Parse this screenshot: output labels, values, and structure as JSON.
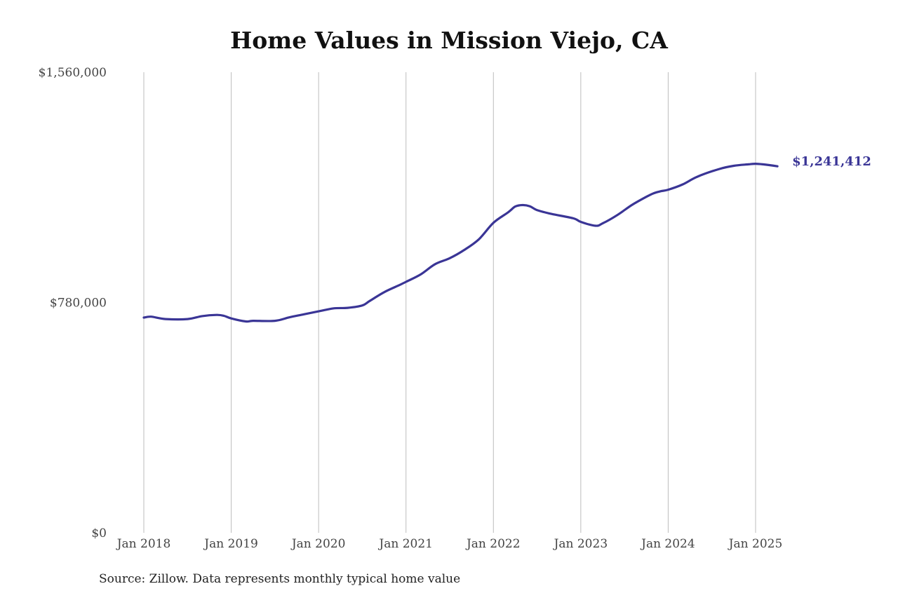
{
  "chart_data": {
    "type": "line",
    "title": "Home Values in Mission Viejo, CA",
    "xlabel": "",
    "ylabel": "",
    "ylim": [
      0,
      1560000
    ],
    "y_ticks": [
      {
        "value": 0,
        "label": "$0"
      },
      {
        "value": 780000,
        "label": "$780,000"
      },
      {
        "value": 1560000,
        "label": "$1,560,000"
      }
    ],
    "x_ticks": [
      {
        "value": 2018.0,
        "label": "Jan 2018"
      },
      {
        "value": 2019.0,
        "label": "Jan 2019"
      },
      {
        "value": 2020.0,
        "label": "Jan 2020"
      },
      {
        "value": 2021.0,
        "label": "Jan 2021"
      },
      {
        "value": 2022.0,
        "label": "Jan 2022"
      },
      {
        "value": 2023.0,
        "label": "Jan 2023"
      },
      {
        "value": 2024.0,
        "label": "Jan 2024"
      },
      {
        "value": 2025.0,
        "label": "Jan 2025"
      }
    ],
    "grid": "vertical",
    "line_color": "#3a3596",
    "series": [
      {
        "x": [
          2018.0,
          2018.083,
          2018.25,
          2018.5,
          2018.667,
          2018.833,
          2018.917,
          2019.0,
          2019.167,
          2019.25,
          2019.5,
          2019.667,
          2019.833,
          2020.0,
          2020.167,
          2020.333,
          2020.5,
          2020.583,
          2020.75,
          2020.917,
          2021.0,
          2021.167,
          2021.333,
          2021.5,
          2021.667,
          2021.833,
          2022.0,
          2022.167,
          2022.25,
          2022.333,
          2022.417,
          2022.5,
          2022.667,
          2022.917,
          2023.0,
          2023.167,
          2023.25,
          2023.417,
          2023.583,
          2023.75,
          2023.833,
          2023.917,
          2024.0,
          2024.167,
          2024.333,
          2024.583,
          2024.75,
          2024.917,
          2025.0,
          2025.083,
          2025.25
        ],
        "y": [
          729000,
          732000,
          724000,
          724000,
          734000,
          738000,
          735000,
          726000,
          716000,
          718000,
          718000,
          730000,
          740000,
          750000,
          760000,
          762000,
          770000,
          785000,
          815000,
          838000,
          850000,
          875000,
          910000,
          930000,
          958000,
          994000,
          1050000,
          1085000,
          1105000,
          1110000,
          1106000,
          1093000,
          1080000,
          1065000,
          1053000,
          1040000,
          1048000,
          1076000,
          1110000,
          1138000,
          1150000,
          1157000,
          1162000,
          1180000,
          1206000,
          1232000,
          1243000,
          1248000,
          1250000,
          1248000,
          1241412
        ]
      }
    ],
    "end_label": "$1,241,412"
  },
  "source_note": "Source: Zillow. Data represents monthly typical home value"
}
